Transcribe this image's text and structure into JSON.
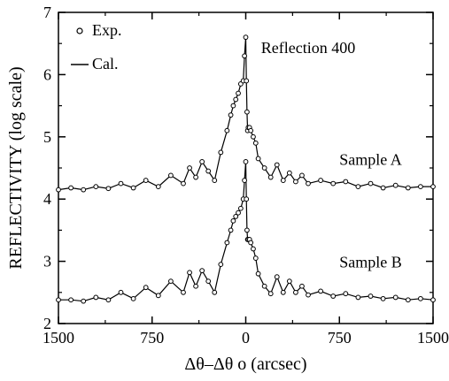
{
  "chart_data": {
    "type": "line",
    "xlabel": "Δθ–Δθ o  (arcsec)",
    "ylabel": "REFLECTIVITY  (log scale)",
    "xlim": [
      -1500,
      1500
    ],
    "ylim": [
      2,
      7
    ],
    "x_ticks": [
      -1500,
      -750,
      0,
      750,
      1500
    ],
    "x_tick_labels": [
      "1500",
      "750",
      "0",
      "750",
      "1500"
    ],
    "y_ticks": [
      2,
      3,
      4,
      5,
      6,
      7
    ],
    "y_tick_labels": [
      "2",
      "3",
      "4",
      "5",
      "6",
      "7"
    ],
    "legend": {
      "position": "top-left",
      "entries": [
        {
          "marker": "circle",
          "label": "Exp."
        },
        {
          "marker": "line",
          "label": "Cal."
        }
      ]
    },
    "annotations": [
      {
        "text": "Reflection 400",
        "x": 500,
        "y": 6.35
      },
      {
        "text": "Sample A",
        "x": 1000,
        "y": 4.55
      },
      {
        "text": "Sample B",
        "x": 1000,
        "y": 2.9
      }
    ],
    "series": [
      {
        "name": "Sample A",
        "x": [
          -1500,
          -1400,
          -1300,
          -1200,
          -1100,
          -1000,
          -900,
          -800,
          -700,
          -600,
          -500,
          -450,
          -400,
          -350,
          -300,
          -250,
          -200,
          -150,
          -120,
          -100,
          -80,
          -60,
          -40,
          -20,
          -10,
          0,
          5,
          10,
          15,
          20,
          30,
          40,
          60,
          80,
          100,
          150,
          200,
          250,
          300,
          350,
          400,
          450,
          500,
          600,
          700,
          800,
          900,
          1000,
          1100,
          1200,
          1300,
          1400,
          1500
        ],
        "y": [
          4.15,
          4.18,
          4.15,
          4.2,
          4.17,
          4.25,
          4.18,
          4.3,
          4.2,
          4.38,
          4.25,
          4.5,
          4.35,
          4.6,
          4.45,
          4.3,
          4.75,
          5.1,
          5.35,
          5.5,
          5.6,
          5.7,
          5.85,
          5.9,
          6.3,
          6.6,
          5.9,
          5.4,
          5.1,
          5.15,
          5.15,
          5.1,
          5.0,
          4.9,
          4.65,
          4.5,
          4.35,
          4.55,
          4.3,
          4.42,
          4.28,
          4.38,
          4.25,
          4.3,
          4.25,
          4.28,
          4.2,
          4.25,
          4.18,
          4.22,
          4.18,
          4.2,
          4.2
        ]
      },
      {
        "name": "Sample B",
        "x": [
          -1500,
          -1400,
          -1300,
          -1200,
          -1100,
          -1000,
          -900,
          -800,
          -700,
          -600,
          -500,
          -450,
          -400,
          -350,
          -300,
          -250,
          -200,
          -150,
          -120,
          -100,
          -80,
          -60,
          -40,
          -20,
          -10,
          0,
          5,
          10,
          15,
          20,
          30,
          40,
          60,
          80,
          100,
          150,
          200,
          250,
          300,
          350,
          400,
          450,
          500,
          600,
          700,
          800,
          900,
          1000,
          1100,
          1200,
          1300,
          1400,
          1500
        ],
        "y": [
          2.38,
          2.38,
          2.36,
          2.42,
          2.38,
          2.5,
          2.4,
          2.58,
          2.45,
          2.68,
          2.5,
          2.82,
          2.6,
          2.85,
          2.68,
          2.5,
          2.95,
          3.3,
          3.5,
          3.65,
          3.72,
          3.78,
          3.85,
          4.0,
          4.3,
          4.6,
          4.0,
          3.5,
          3.35,
          3.35,
          3.35,
          3.3,
          3.2,
          3.05,
          2.8,
          2.6,
          2.48,
          2.75,
          2.5,
          2.68,
          2.5,
          2.6,
          2.46,
          2.52,
          2.44,
          2.48,
          2.42,
          2.44,
          2.4,
          2.42,
          2.38,
          2.4,
          2.38
        ]
      }
    ]
  }
}
